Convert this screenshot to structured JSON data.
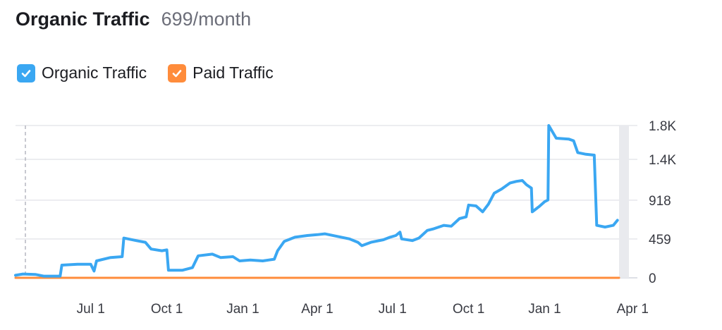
{
  "header": {
    "title": "Organic Traffic",
    "subtitle": "699/month"
  },
  "legend": [
    {
      "label": "Organic Traffic",
      "color": "#3aa7f2",
      "checked": true
    },
    {
      "label": "Paid Traffic",
      "color": "#ff8c3b",
      "checked": true
    }
  ],
  "chart_data": {
    "type": "line",
    "title": "Organic Traffic",
    "xlabel": "",
    "ylabel": "",
    "grid": true,
    "y_axis_position": "right",
    "y_ticks": [
      {
        "value": 0,
        "label": "0"
      },
      {
        "value": 459,
        "label": "459"
      },
      {
        "value": 918,
        "label": "918"
      },
      {
        "value": 1400,
        "label": "1.4K"
      },
      {
        "value": 1800,
        "label": "1.8K"
      }
    ],
    "ylim": [
      0,
      1800
    ],
    "x_range": [
      "2021-04-01",
      "2023-04-01"
    ],
    "x_ticks": [
      {
        "date": "2021-07-01",
        "label": "Jul 1"
      },
      {
        "date": "2021-10-01",
        "label": "Oct 1"
      },
      {
        "date": "2022-01-01",
        "label": "Jan 1"
      },
      {
        "date": "2022-04-01",
        "label": "Apr 1"
      },
      {
        "date": "2022-07-01",
        "label": "Jul 1"
      },
      {
        "date": "2022-10-01",
        "label": "Oct 1"
      },
      {
        "date": "2023-01-01",
        "label": "Jan 1"
      },
      {
        "date": "2023-04-01",
        "label": "Apr 1"
      }
    ],
    "series": [
      {
        "name": "Organic Traffic",
        "color": "#3aa7f2",
        "points": [
          [
            "2021-04-01",
            30
          ],
          [
            "2021-04-10",
            45
          ],
          [
            "2021-04-25",
            40
          ],
          [
            "2021-05-05",
            20
          ],
          [
            "2021-05-25",
            20
          ],
          [
            "2021-05-27",
            150
          ],
          [
            "2021-06-15",
            160
          ],
          [
            "2021-07-01",
            160
          ],
          [
            "2021-07-05",
            80
          ],
          [
            "2021-07-08",
            200
          ],
          [
            "2021-07-25",
            240
          ],
          [
            "2021-08-08",
            250
          ],
          [
            "2021-08-10",
            470
          ],
          [
            "2021-08-25",
            440
          ],
          [
            "2021-09-05",
            420
          ],
          [
            "2021-09-12",
            340
          ],
          [
            "2021-09-25",
            320
          ],
          [
            "2021-10-01",
            330
          ],
          [
            "2021-10-03",
            90
          ],
          [
            "2021-10-20",
            90
          ],
          [
            "2021-11-01",
            120
          ],
          [
            "2021-11-08",
            260
          ],
          [
            "2021-11-25",
            280
          ],
          [
            "2021-12-05",
            240
          ],
          [
            "2021-12-20",
            250
          ],
          [
            "2021-12-28",
            200
          ],
          [
            "2022-01-10",
            210
          ],
          [
            "2022-01-25",
            200
          ],
          [
            "2022-02-08",
            220
          ],
          [
            "2022-02-12",
            320
          ],
          [
            "2022-02-20",
            430
          ],
          [
            "2022-03-05",
            480
          ],
          [
            "2022-03-20",
            500
          ],
          [
            "2022-04-01",
            510
          ],
          [
            "2022-04-10",
            520
          ],
          [
            "2022-04-25",
            490
          ],
          [
            "2022-05-10",
            460
          ],
          [
            "2022-05-20",
            420
          ],
          [
            "2022-05-25",
            380
          ],
          [
            "2022-06-05",
            420
          ],
          [
            "2022-06-20",
            450
          ],
          [
            "2022-06-28",
            480
          ],
          [
            "2022-07-05",
            500
          ],
          [
            "2022-07-10",
            540
          ],
          [
            "2022-07-12",
            460
          ],
          [
            "2022-07-25",
            440
          ],
          [
            "2022-08-02",
            470
          ],
          [
            "2022-08-12",
            560
          ],
          [
            "2022-08-20",
            580
          ],
          [
            "2022-09-01",
            620
          ],
          [
            "2022-09-10",
            610
          ],
          [
            "2022-09-20",
            700
          ],
          [
            "2022-09-28",
            720
          ],
          [
            "2022-10-01",
            860
          ],
          [
            "2022-10-10",
            850
          ],
          [
            "2022-10-18",
            780
          ],
          [
            "2022-10-25",
            870
          ],
          [
            "2022-11-01",
            1000
          ],
          [
            "2022-11-10",
            1050
          ],
          [
            "2022-11-20",
            1120
          ],
          [
            "2022-11-28",
            1140
          ],
          [
            "2022-12-05",
            1150
          ],
          [
            "2022-12-10",
            1100
          ],
          [
            "2022-12-16",
            1060
          ],
          [
            "2022-12-17",
            780
          ],
          [
            "2022-12-25",
            840
          ],
          [
            "2023-01-01",
            900
          ],
          [
            "2023-01-05",
            920
          ],
          [
            "2023-01-06",
            1800
          ],
          [
            "2023-01-15",
            1650
          ],
          [
            "2023-01-30",
            1640
          ],
          [
            "2023-02-05",
            1620
          ],
          [
            "2023-02-10",
            1480
          ],
          [
            "2023-02-20",
            1460
          ],
          [
            "2023-03-02",
            1450
          ],
          [
            "2023-03-05",
            620
          ],
          [
            "2023-03-15",
            600
          ],
          [
            "2023-03-25",
            620
          ],
          [
            "2023-03-30",
            680
          ]
        ]
      },
      {
        "name": "Paid Traffic",
        "color": "#ff8c3b",
        "points": [
          [
            "2021-04-01",
            0
          ],
          [
            "2023-04-01",
            0
          ]
        ]
      }
    ]
  }
}
